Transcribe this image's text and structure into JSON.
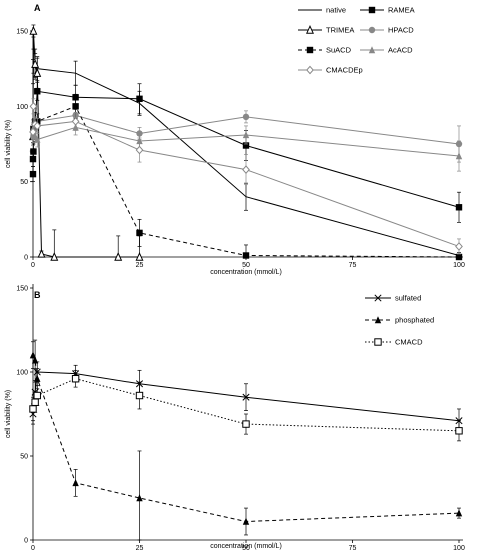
{
  "chart_data": [
    {
      "type": "line",
      "panel_label": "A",
      "xlabel": "concentration (mmol/L)",
      "ylabel": "cell viability (%)",
      "xlim": [
        0,
        100
      ],
      "ylim": [
        0,
        150
      ],
      "xticks": [
        0,
        25,
        50,
        75,
        100
      ],
      "yticks": [
        0,
        50,
        100,
        150
      ],
      "grid": false,
      "legend_position": "top-right",
      "series": [
        {
          "name": "native",
          "color": "#000000",
          "dash": "solid",
          "marker": "none",
          "x": [
            0,
            0.1,
            0.5,
            1,
            10,
            25,
            50,
            100
          ],
          "y": [
            123,
            130,
            127,
            125,
            122,
            102,
            40,
            1
          ],
          "err": [
            8,
            8,
            8,
            8,
            8,
            8,
            9,
            2
          ]
        },
        {
          "name": "RAMEA",
          "color": "#000000",
          "dash": "solid",
          "marker": "square-filled",
          "x": [
            0,
            0.1,
            0.5,
            1,
            10,
            25,
            50,
            100
          ],
          "y": [
            55,
            85,
            90,
            110,
            106,
            105,
            74,
            33
          ],
          "err": [
            5,
            6,
            6,
            6,
            8,
            10,
            10,
            10
          ]
        },
        {
          "name": "TRIMEA",
          "color": "#000000",
          "dash": "solid",
          "marker": "triangle-open",
          "x": [
            0,
            0.1,
            0.5,
            1,
            2,
            5,
            20,
            25
          ],
          "y": [
            80,
            150,
            128,
            122,
            2,
            0,
            0,
            0
          ],
          "err": [
            4,
            4,
            10,
            10,
            2,
            18,
            14,
            14
          ]
        },
        {
          "name": "HPACD",
          "color": "#888888",
          "dash": "solid",
          "marker": "circle-filled",
          "x": [
            0,
            0.1,
            0.5,
            1,
            10,
            25,
            50,
            100
          ],
          "y": [
            70,
            80,
            85,
            90,
            94,
            82,
            93,
            75
          ],
          "err": [
            4,
            4,
            5,
            5,
            5,
            4,
            4,
            12
          ]
        },
        {
          "name": "SuACD",
          "color": "#000000",
          "dash": "dashed",
          "marker": "square-filled",
          "x": [
            0,
            0.1,
            0.5,
            1,
            10,
            25,
            50,
            100
          ],
          "y": [
            65,
            70,
            88,
            90,
            100,
            16,
            1,
            0
          ],
          "err": [
            5,
            5,
            5,
            5,
            8,
            9,
            7,
            2
          ]
        },
        {
          "name": "AcACD",
          "color": "#888888",
          "dash": "solid",
          "marker": "triangle-filled",
          "x": [
            0,
            0.1,
            0.5,
            1,
            10,
            25,
            50,
            100
          ],
          "y": [
            85,
            83,
            80,
            78,
            86,
            77,
            81,
            67
          ],
          "err": [
            4,
            4,
            4,
            5,
            5,
            5,
            6,
            10
          ]
        },
        {
          "name": "CMACDEp",
          "color": "#888888",
          "dash": "solid",
          "marker": "diamond-open",
          "x": [
            0,
            0.1,
            0.5,
            1,
            10,
            25,
            50,
            100
          ],
          "y": [
            83,
            100,
            88,
            87,
            90,
            71,
            58,
            7
          ],
          "err": [
            5,
            5,
            5,
            5,
            6,
            8,
            10,
            5
          ]
        }
      ]
    },
    {
      "type": "line",
      "panel_label": "B",
      "xlabel": "concentration (mmol/L)",
      "ylabel": "cell viability (%)",
      "xlim": [
        0,
        100
      ],
      "ylim": [
        0,
        150
      ],
      "xticks": [
        0,
        25,
        50,
        75,
        100
      ],
      "yticks": [
        0,
        50,
        100,
        150
      ],
      "grid": false,
      "legend_position": "top-right",
      "series": [
        {
          "name": "sulfated",
          "color": "#000000",
          "dash": "solid",
          "marker": "x",
          "x": [
            0,
            0.5,
            1,
            10,
            25,
            50,
            100
          ],
          "y": [
            75,
            88,
            100,
            99,
            93,
            85,
            71
          ],
          "err": [
            6,
            6,
            6,
            5,
            8,
            8,
            7
          ]
        },
        {
          "name": "phosphated",
          "color": "#000000",
          "dash": "dashed",
          "marker": "triangle-filled",
          "x": [
            0,
            0.5,
            1,
            10,
            25,
            50,
            100
          ],
          "y": [
            110,
            107,
            96,
            34,
            25,
            11,
            16
          ],
          "err": [
            8,
            12,
            6,
            8,
            28,
            8,
            3
          ]
        },
        {
          "name": "CMACD",
          "color": "#000000",
          "dash": "dotted",
          "marker": "square-open",
          "x": [
            0,
            0.5,
            1,
            10,
            25,
            50,
            100
          ],
          "y": [
            78,
            82,
            86,
            96,
            86,
            69,
            65
          ],
          "err": [
            7,
            6,
            6,
            5,
            8,
            6,
            6
          ]
        }
      ]
    }
  ]
}
